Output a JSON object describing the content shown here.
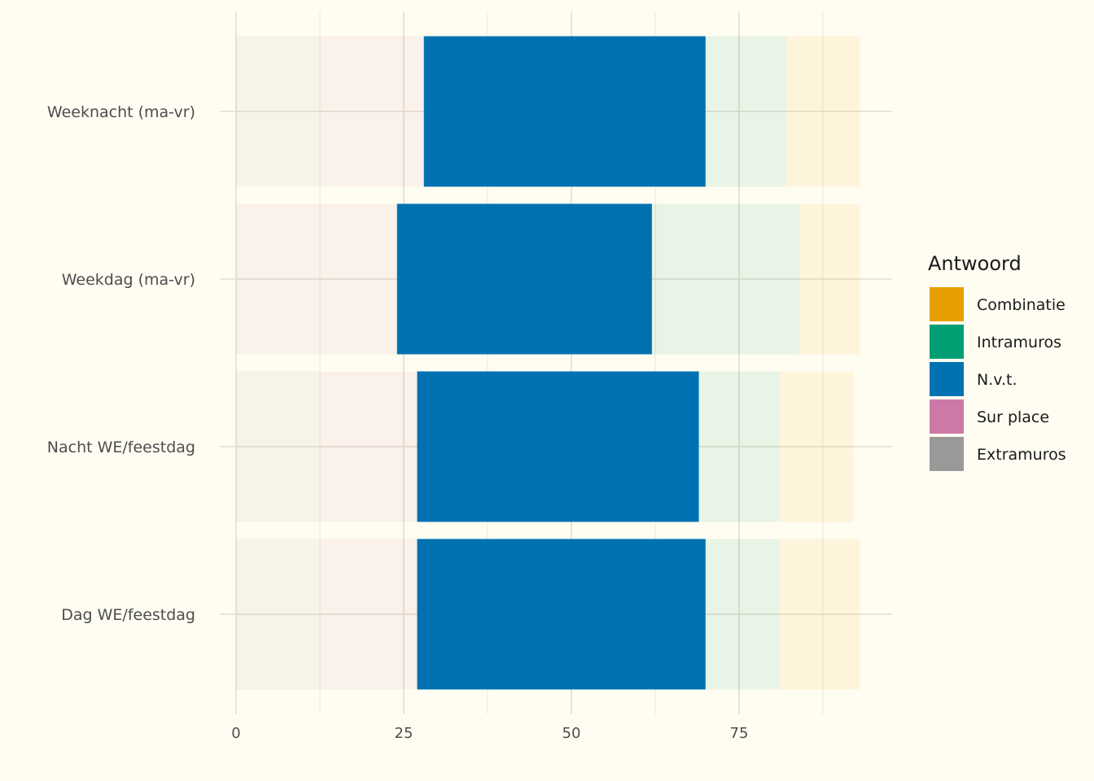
{
  "chart_data": {
    "type": "bar",
    "orientation": "horizontal",
    "stacked": true,
    "categories": [
      "Weeknacht (ma-vr)",
      "Weekdag (ma-vr)",
      "Nacht WE/feestdag",
      "Dag WE/feestdag"
    ],
    "x_ticks": [
      0,
      25,
      50,
      75
    ],
    "xlim": [
      0,
      97
    ],
    "stack_order": [
      "Extramuros",
      "Sur place",
      "N.v.t.",
      "Intramuros",
      "Combinatie"
    ],
    "series": [
      {
        "name": "Extramuros",
        "color": "#999999",
        "values": [
          12.5,
          0,
          12.5,
          12.5
        ]
      },
      {
        "name": "Sur place",
        "color": "#cc79a7",
        "values": [
          15.5,
          24,
          14.5,
          14.5
        ]
      },
      {
        "name": "N.v.t.",
        "color": "#0072b2",
        "values": [
          42,
          38,
          42,
          43
        ]
      },
      {
        "name": "Intramuros",
        "color": "#009e73",
        "values": [
          12,
          22,
          12,
          11
        ]
      },
      {
        "name": "Combinatie",
        "color": "#e69f00",
        "values": [
          11,
          9,
          11,
          12
        ]
      }
    ],
    "highlighted_series": "N.v.t.",
    "faded_opacity": 0.09,
    "legend": {
      "title": "Antwoord",
      "position": "right",
      "entries": [
        "Combinatie",
        "Intramuros",
        "N.v.t.",
        "Sur place",
        "Extramuros"
      ]
    },
    "grid": true
  }
}
